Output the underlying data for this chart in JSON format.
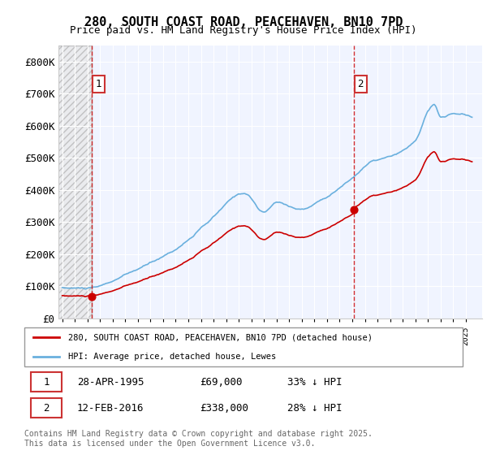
{
  "title_line1": "280, SOUTH COAST ROAD, PEACEHAVEN, BN10 7PD",
  "title_line2": "Price paid vs. HM Land Registry's House Price Index (HPI)",
  "ylabel": "",
  "hpi_color": "#6ab0de",
  "price_color": "#cc0000",
  "dashed_color": "#cc0000",
  "background_color": "#ffffff",
  "grid_color": "#cccccc",
  "hatch_color": "#d0d0d0",
  "ylim": [
    0,
    850000
  ],
  "yticks": [
    0,
    100000,
    200000,
    300000,
    400000,
    500000,
    600000,
    700000,
    800000
  ],
  "ytick_labels": [
    "£0",
    "£100K",
    "£200K",
    "£300K",
    "£400K",
    "£500K",
    "£600K",
    "£700K",
    "£800K"
  ],
  "sale1_date": 1995.32,
  "sale1_price": 69000,
  "sale1_label": "1",
  "sale2_date": 2016.12,
  "sale2_price": 338000,
  "sale2_label": "2",
  "legend_line1": "280, SOUTH COAST ROAD, PEACEHAVEN, BN10 7PD (detached house)",
  "legend_line2": "HPI: Average price, detached house, Lewes",
  "table_row1": [
    "1",
    "28-APR-1995",
    "£69,000",
    "33% ↓ HPI"
  ],
  "table_row2": [
    "2",
    "12-FEB-2016",
    "£338,000",
    "28% ↓ HPI"
  ],
  "footer": "Contains HM Land Registry data © Crown copyright and database right 2025.\nThis data is licensed under the Open Government Licence v3.0.",
  "xmin": 1993,
  "xmax": 2026
}
